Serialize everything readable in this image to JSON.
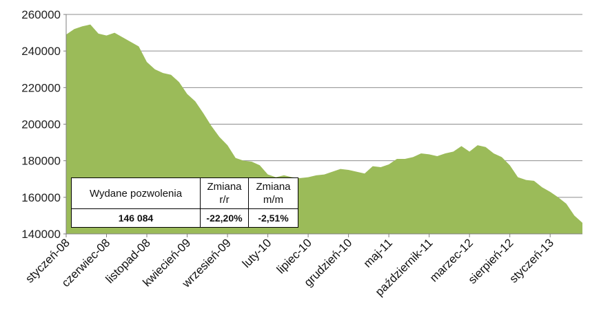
{
  "chart_data": {
    "type": "area",
    "ylim": [
      140000,
      260000
    ],
    "yticks": [
      140000,
      160000,
      180000,
      200000,
      220000,
      240000,
      260000
    ],
    "ytick_labels": [
      "140000",
      "160000",
      "180000",
      "200000",
      "220000",
      "240000",
      "260000"
    ],
    "grid": true,
    "fill_color": "#9BBB59",
    "xtick_labels": [
      "styczeń-08",
      "czerwiec-08",
      "listopad-08",
      "kwiecień-09",
      "wrzesień-09",
      "luty-10",
      "lipiec-10",
      "grudzień-10",
      "maj-11",
      "październik-11",
      "marzec-12",
      "sierpień-12",
      "styczeń-13"
    ],
    "xtick_every": 5,
    "values": [
      249000,
      252000,
      253500,
      254500,
      249500,
      248500,
      250000,
      247500,
      245000,
      242500,
      234000,
      230000,
      228000,
      227000,
      223000,
      216500,
      212500,
      206000,
      199000,
      193000,
      188500,
      181500,
      180000,
      179500,
      177500,
      172500,
      171000,
      172000,
      171000,
      170500,
      171000,
      172000,
      172500,
      174000,
      175500,
      175000,
      174000,
      173000,
      177000,
      176500,
      178000,
      181000,
      181000,
      182000,
      184000,
      183500,
      182500,
      184000,
      185000,
      188000,
      185000,
      188500,
      187500,
      184000,
      182000,
      177500,
      171000,
      169500,
      169000,
      165500,
      163000,
      160000,
      156500,
      150000,
      146084
    ]
  },
  "table": {
    "header_1": "Wydane pozwolenia",
    "header_2_line1": "Zmiana",
    "header_2_line2": "r/r",
    "header_3_line1": "Zmiana",
    "header_3_line2": "m/m",
    "value_1": "146 084",
    "value_2": "-22,20%",
    "value_3": "-2,51%"
  }
}
